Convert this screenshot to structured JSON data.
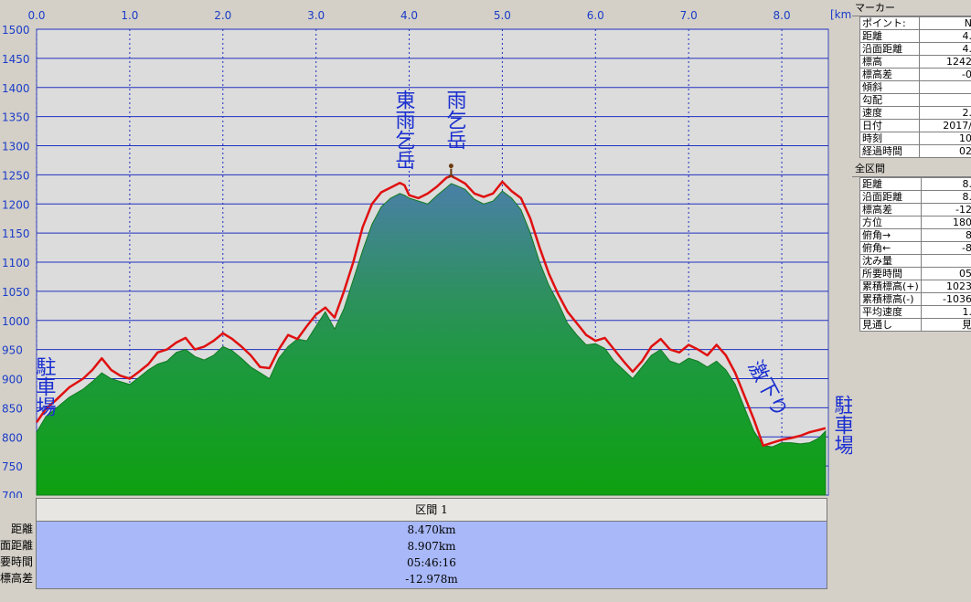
{
  "chart_data": {
    "type": "area",
    "x_unit": "[km]",
    "xlim": [
      0,
      8.5
    ],
    "ylim": [
      700,
      1500
    ],
    "x_ticks": [
      0.0,
      1.0,
      2.0,
      3.0,
      4.0,
      5.0,
      6.0,
      7.0,
      8.0
    ],
    "x_tick_labels": [
      "0.0",
      "1.0",
      "2.0",
      "3.0",
      "4.0",
      "5.0",
      "6.0",
      "7.0",
      "8.0"
    ],
    "y_ticks": [
      700,
      750,
      800,
      850,
      900,
      950,
      1000,
      1050,
      1100,
      1150,
      1200,
      1250,
      1300,
      1350,
      1400,
      1450,
      1500
    ],
    "y_tick_labels": [
      "700",
      "750",
      "800",
      "850",
      "900",
      "950",
      "1000",
      "1050",
      "1100",
      "1150",
      "1200",
      "1250",
      "1300",
      "1350",
      "1400",
      "1450",
      "1500"
    ],
    "grid": true,
    "series": [
      {
        "x": [
          0.0,
          0.1,
          0.2,
          0.35,
          0.5,
          0.6,
          0.7,
          0.8,
          0.9,
          1.0,
          1.1,
          1.2,
          1.3,
          1.4,
          1.5,
          1.6,
          1.7,
          1.8,
          1.9,
          2.0,
          2.1,
          2.2,
          2.3,
          2.4,
          2.5,
          2.6,
          2.7,
          2.8,
          2.9,
          3.0,
          3.1,
          3.2,
          3.3,
          3.4,
          3.5,
          3.6,
          3.7,
          3.8,
          3.9,
          3.95,
          4.0,
          4.1,
          4.2,
          4.3,
          4.4,
          4.45,
          4.5,
          4.6,
          4.7,
          4.8,
          4.9,
          5.0,
          5.1,
          5.2,
          5.3,
          5.4,
          5.5,
          5.6,
          5.7,
          5.8,
          5.9,
          6.0,
          6.1,
          6.2,
          6.3,
          6.4,
          6.5,
          6.6,
          6.7,
          6.8,
          6.9,
          7.0,
          7.1,
          7.2,
          7.3,
          7.4,
          7.5,
          7.6,
          7.7,
          7.8,
          7.9,
          8.0,
          8.1,
          8.2,
          8.3,
          8.4,
          8.47
        ],
        "y": [
          808,
          835,
          848,
          868,
          882,
          895,
          910,
          900,
          895,
          890,
          902,
          915,
          925,
          930,
          945,
          950,
          938,
          932,
          940,
          955,
          948,
          935,
          920,
          910,
          900,
          935,
          955,
          968,
          965,
          990,
          1015,
          985,
          1020,
          1070,
          1120,
          1165,
          1195,
          1210,
          1218,
          1215,
          1210,
          1205,
          1200,
          1215,
          1228,
          1235,
          1232,
          1225,
          1208,
          1200,
          1205,
          1222,
          1210,
          1190,
          1150,
          1100,
          1060,
          1030,
          995,
          975,
          958,
          960,
          952,
          930,
          915,
          900,
          920,
          940,
          950,
          930,
          925,
          935,
          930,
          920,
          930,
          915,
          890,
          850,
          810,
          785,
          783,
          790,
          790,
          788,
          790,
          798,
          810
        ],
        "color": "#1aa040"
      },
      {
        "x": [
          0.0,
          0.1,
          0.2,
          0.35,
          0.5,
          0.6,
          0.7,
          0.8,
          0.9,
          1.0,
          1.1,
          1.2,
          1.3,
          1.4,
          1.5,
          1.6,
          1.7,
          1.8,
          1.9,
          2.0,
          2.1,
          2.2,
          2.3,
          2.4,
          2.5,
          2.6,
          2.7,
          2.8,
          2.9,
          3.0,
          3.1,
          3.2,
          3.3,
          3.4,
          3.5,
          3.6,
          3.7,
          3.8,
          3.9,
          3.95,
          4.0,
          4.1,
          4.2,
          4.3,
          4.4,
          4.45,
          4.5,
          4.6,
          4.7,
          4.8,
          4.9,
          5.0,
          5.1,
          5.2,
          5.3,
          5.4,
          5.5,
          5.6,
          5.7,
          5.8,
          5.9,
          6.0,
          6.1,
          6.2,
          6.3,
          6.4,
          6.5,
          6.6,
          6.7,
          6.8,
          6.9,
          7.0,
          7.1,
          7.2,
          7.3,
          7.4,
          7.5,
          7.6,
          7.7,
          7.8,
          7.9,
          8.0,
          8.1,
          8.2,
          8.3,
          8.4,
          8.47
        ],
        "y": [
          825,
          848,
          862,
          885,
          900,
          915,
          935,
          915,
          905,
          900,
          912,
          925,
          945,
          950,
          962,
          970,
          950,
          955,
          965,
          978,
          968,
          955,
          940,
          920,
          918,
          950,
          975,
          968,
          990,
          1010,
          1022,
          1005,
          1050,
          1100,
          1160,
          1200,
          1220,
          1228,
          1236,
          1232,
          1215,
          1210,
          1218,
          1230,
          1245,
          1248,
          1244,
          1235,
          1218,
          1212,
          1218,
          1238,
          1222,
          1210,
          1175,
          1125,
          1080,
          1045,
          1015,
          995,
          975,
          965,
          970,
          950,
          930,
          912,
          930,
          955,
          968,
          950,
          945,
          958,
          950,
          940,
          958,
          940,
          910,
          870,
          830,
          785,
          790,
          795,
          798,
          802,
          808,
          812,
          815
        ],
        "color": "#e01010"
      }
    ]
  },
  "annotations": {
    "parking_start": "駐車場",
    "higashi_amagoi": "東雨乞岳",
    "amagoi": "雨乞岳",
    "steep_descent": "激下り",
    "parking_end": "駐車場"
  },
  "marker_panel": {
    "title": "マーカー",
    "rows": [
      {
        "k": "ポイント:",
        "v": "N"
      },
      {
        "k": "距離",
        "v": "4."
      },
      {
        "k": "沿面距離",
        "v": "4."
      },
      {
        "k": "標高",
        "v": "1242"
      },
      {
        "k": "標高差",
        "v": "-0"
      },
      {
        "k": "傾斜",
        "v": ""
      },
      {
        "k": "勾配",
        "v": ""
      },
      {
        "k": "速度",
        "v": "2."
      },
      {
        "k": "日付",
        "v": "2017/"
      },
      {
        "k": "時刻",
        "v": "10"
      },
      {
        "k": "経過時間",
        "v": "02"
      }
    ]
  },
  "total_panel": {
    "title": "全区間",
    "rows": [
      {
        "k": "距離",
        "v": "8."
      },
      {
        "k": "沿面距離",
        "v": "8."
      },
      {
        "k": "標高差",
        "v": "-12"
      },
      {
        "k": "方位",
        "v": "180"
      },
      {
        "k": "俯角→",
        "v": "8"
      },
      {
        "k": "俯角←",
        "v": "-8"
      },
      {
        "k": "沈み量",
        "v": ""
      },
      {
        "k": "所要時間",
        "v": "05"
      },
      {
        "k": "累積標高(+)",
        "v": "1023"
      },
      {
        "k": "累積標高(-)",
        "v": "-1036"
      },
      {
        "k": "平均速度",
        "v": "1."
      },
      {
        "k": "見通し",
        "v": "見"
      }
    ]
  },
  "section": {
    "header": "区間 1",
    "labels": [
      "距離",
      "沿面距離",
      "所要時間",
      "標高差"
    ],
    "values": [
      "8.470km",
      "8.907km",
      "05:46:16",
      "-12.978m"
    ]
  }
}
